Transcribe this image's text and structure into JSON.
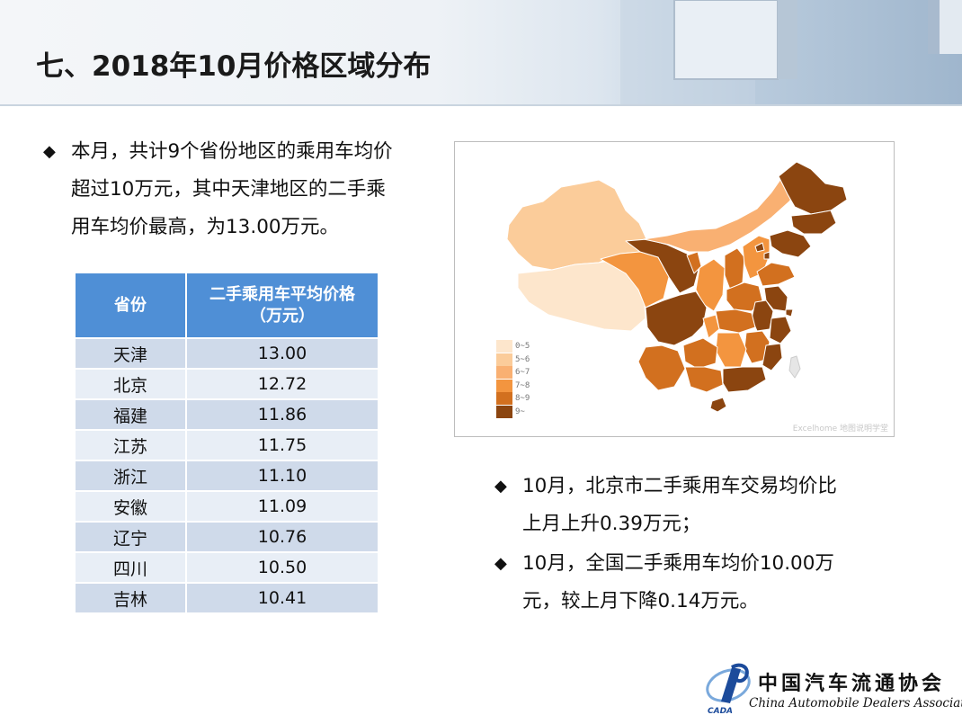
{
  "header": {
    "title": "七、2018年10月价格区域分布"
  },
  "intro_bullet": {
    "lines": [
      "本月，共计9个省份地区的乘用车均价",
      "超过10万元，其中天津地区的二手乘",
      "用车均价最高，为13.00万元。"
    ]
  },
  "table": {
    "headers": [
      "省份",
      "二手乘用车平均价格",
      "（万元）"
    ],
    "rows": [
      {
        "province": "天津",
        "price": "13.00"
      },
      {
        "province": "北京",
        "price": "12.72"
      },
      {
        "province": "福建",
        "price": "11.86"
      },
      {
        "province": "江苏",
        "price": "11.75"
      },
      {
        "province": "浙江",
        "price": "11.10"
      },
      {
        "province": "安徽",
        "price": "11.09"
      },
      {
        "province": "辽宁",
        "price": "10.76"
      },
      {
        "province": "四川",
        "price": "10.50"
      },
      {
        "province": "吉林",
        "price": "10.41"
      }
    ]
  },
  "map": {
    "legend": [
      {
        "label": "0~5",
        "color": "#fde6cc"
      },
      {
        "label": "5~6",
        "color": "#fbcc9a"
      },
      {
        "label": "6~7",
        "color": "#f9b072"
      },
      {
        "label": "7~8",
        "color": "#f3953f"
      },
      {
        "label": "8~9",
        "color": "#d2701f"
      },
      {
        "label": "9~",
        "color": "#8b4510"
      }
    ],
    "watermark": "Excelhome 地图说明学堂"
  },
  "bullets_right": [
    {
      "lines": [
        "10月，北京市二手乘用车交易均价比",
        "上月上升0.39万元；"
      ]
    },
    {
      "lines": [
        "10月，全国二手乘用车均价10.00万",
        "元，较上月下降0.14万元。"
      ]
    }
  ],
  "logo": {
    "cn": "中国汽车流通协会",
    "en": "China Automobile Dealers Association",
    "abbr": "CADA"
  }
}
